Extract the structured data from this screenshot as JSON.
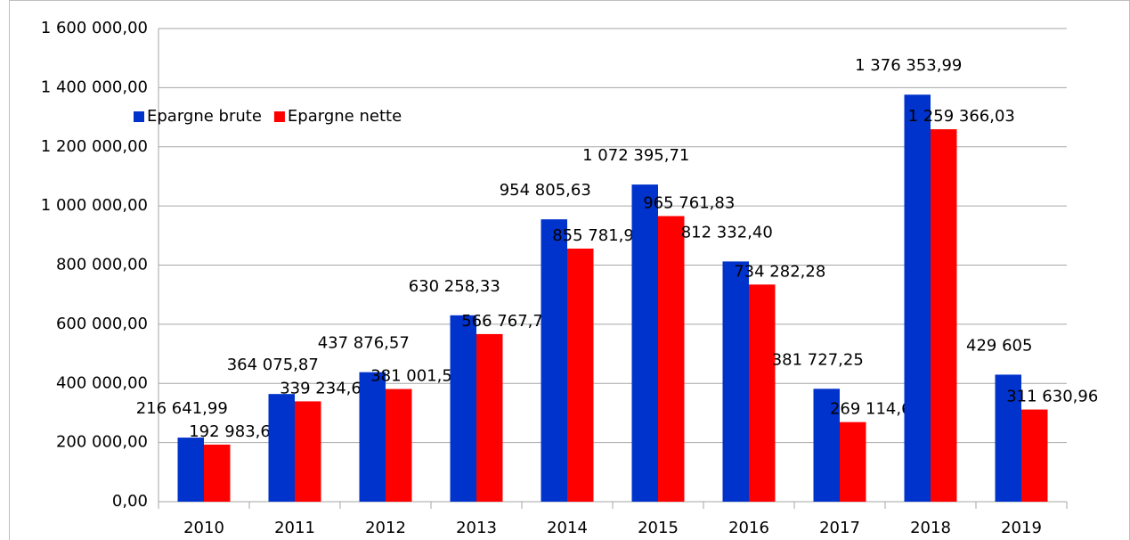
{
  "chart_data": {
    "type": "bar",
    "categories": [
      "2010",
      "2011",
      "2012",
      "2013",
      "2014",
      "2015",
      "2016",
      "2017",
      "2018",
      "2019"
    ],
    "series": [
      {
        "name": "Epargne brute",
        "color": "#0033cc",
        "values": [
          216641.99,
          364075.87,
          437876.57,
          630258.33,
          954805.63,
          1072395.71,
          812332.4,
          381727.25,
          1376353.99,
          429605
        ],
        "value_labels": [
          "216 641,99",
          "364 075,87",
          "437 876,57",
          "630 258,33",
          "954 805,63",
          "1 072 395,71",
          "812 332,40",
          "381 727,25",
          "1 376 353,99",
          "429 605"
        ],
        "label_color": "#2273c4"
      },
      {
        "name": "Epargne nette",
        "color": "#ff0000",
        "values": [
          192983.67,
          339234.63,
          381001.59,
          566767.75,
          855781.9,
          965761.83,
          734282.28,
          269114.6,
          1259366.03,
          311630.96
        ],
        "value_labels": [
          "192 983,67",
          "339 234,63",
          "381 001,59",
          "566 767,75",
          "855 781,90",
          "965 761,83",
          "734 282,28",
          "269 114,6",
          "1 259 366,03",
          "311 630,96"
        ],
        "label_color": "#ff0000"
      }
    ],
    "ylim": [
      0,
      1600000
    ],
    "yticks": [
      {
        "value": 0,
        "label": "0,00"
      },
      {
        "value": 200000,
        "label": "200 000,00"
      },
      {
        "value": 400000,
        "label": "400 000,00"
      },
      {
        "value": 600000,
        "label": "600 000,00"
      },
      {
        "value": 800000,
        "label": "800 000,00"
      },
      {
        "value": 1000000,
        "label": "1 000 000,00"
      },
      {
        "value": 1200000,
        "label": "1 200 000,00"
      },
      {
        "value": 1400000,
        "label": "1 400 000,00"
      },
      {
        "value": 1600000,
        "label": "1 600 000,00"
      }
    ],
    "grid": true,
    "legend": "top-left"
  }
}
